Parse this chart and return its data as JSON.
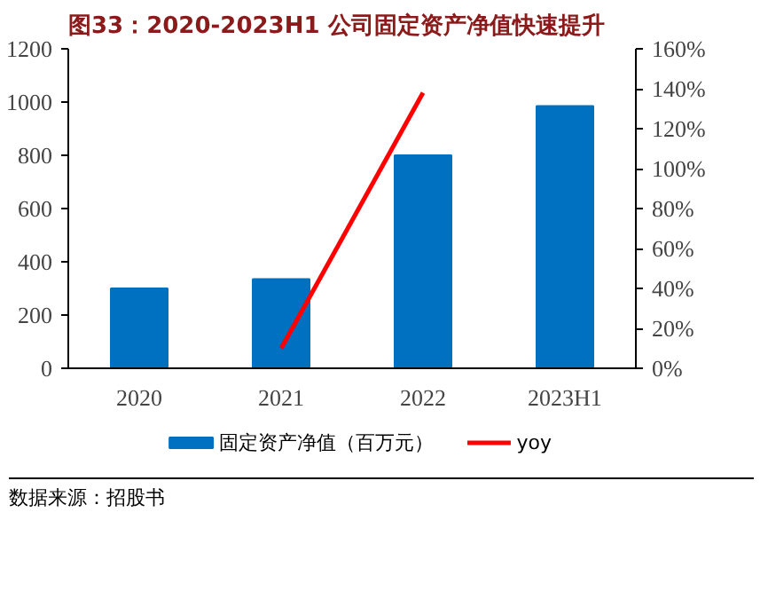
{
  "chart_data": {
    "type": "bar",
    "title": "图33：2020-2023H1 公司固定资产净值快速提升",
    "categories": [
      "2020",
      "2021",
      "2022",
      "2023H1"
    ],
    "series": [
      {
        "name": "固定资产净值（百万元）",
        "color": "#0070c0",
        "values": [
          300,
          335,
          800,
          985
        ]
      },
      {
        "name": "yoy",
        "type": "line",
        "axis": "y2",
        "color": "#ff0000",
        "values": [
          null,
          10,
          138,
          null
        ]
      }
    ],
    "ylim": [
      0,
      1200
    ],
    "yticks": [
      0,
      200,
      400,
      600,
      800,
      1000,
      1200
    ],
    "y2lim": [
      0,
      160
    ],
    "y2ticks": [
      {
        "value": 0,
        "label": "0%"
      },
      {
        "value": 20,
        "label": "20%"
      },
      {
        "value": 40,
        "label": "40%"
      },
      {
        "value": 60,
        "label": "60%"
      },
      {
        "value": 80,
        "label": "80%"
      },
      {
        "value": 100,
        "label": "100%"
      },
      {
        "value": 120,
        "label": "120%"
      },
      {
        "value": 140,
        "label": "140%"
      },
      {
        "value": 160,
        "label": "160%"
      }
    ],
    "grid": false,
    "legend": "bottom",
    "annotations": [
      "数据来源：招股书"
    ]
  }
}
